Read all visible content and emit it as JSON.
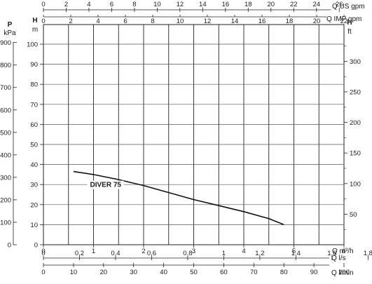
{
  "chart_data": {
    "type": "line",
    "curve_label": "DIVER 75",
    "series": [
      {
        "name": "DIVER 75",
        "x_m3h": [
          0.6,
          1.0,
          1.5,
          2.0,
          2.5,
          3.0,
          3.5,
          4.0,
          4.5,
          4.8
        ],
        "y_head_m": [
          36.5,
          35.0,
          32.5,
          29.5,
          26.0,
          22.5,
          19.5,
          16.5,
          13.0,
          10.0
        ]
      }
    ],
    "left_axis_p": {
      "unit_top": "P",
      "unit_bottom": "kPa",
      "ticks": [
        "0",
        "100",
        "200",
        "300",
        "400",
        "500",
        "600",
        "700",
        "800",
        "900"
      ],
      "range": [
        0,
        980
      ]
    },
    "left_axis_h": {
      "unit_top": "H",
      "unit_bottom": "m",
      "ticks": [
        "0",
        "10",
        "20",
        "30",
        "40",
        "50",
        "60",
        "70",
        "80",
        "90",
        "100"
      ],
      "range": [
        0,
        100
      ]
    },
    "right_axis_h": {
      "unit_top": "H",
      "unit_bottom": "ft",
      "ticks": [
        "50",
        "100",
        "150",
        "200",
        "250",
        "300"
      ],
      "range": [
        0,
        328
      ]
    },
    "top_axis_us": {
      "label": "Q US gpm",
      "ticks": [
        "0",
        "2",
        "4",
        "6",
        "8",
        "10",
        "12",
        "14",
        "16",
        "18",
        "20",
        "22",
        "24",
        "26"
      ]
    },
    "top_axis_imp": {
      "label": "Q IMP gpm",
      "ticks": [
        "0",
        "2",
        "4",
        "6",
        "8",
        "10",
        "12",
        "14",
        "16",
        "18",
        "20",
        "22"
      ]
    },
    "bottom_axis_m3h": {
      "label": "Q m³/h",
      "ticks": [
        "0",
        "1",
        "2",
        "3",
        "4",
        "5",
        "6"
      ],
      "range": [
        0,
        6
      ]
    },
    "bottom_axis_ls": {
      "label": "Q l/s",
      "ticks": [
        "0",
        "0,2",
        "0,4",
        "0,6",
        "0,8",
        "1",
        "1,2",
        "1,4",
        "1,6",
        "1,8"
      ]
    },
    "bottom_axis_lmin": {
      "label": "Q l/min",
      "ticks": [
        "0",
        "10",
        "20",
        "30",
        "40",
        "50",
        "60",
        "70",
        "80",
        "90",
        "100"
      ]
    },
    "grid": true
  }
}
